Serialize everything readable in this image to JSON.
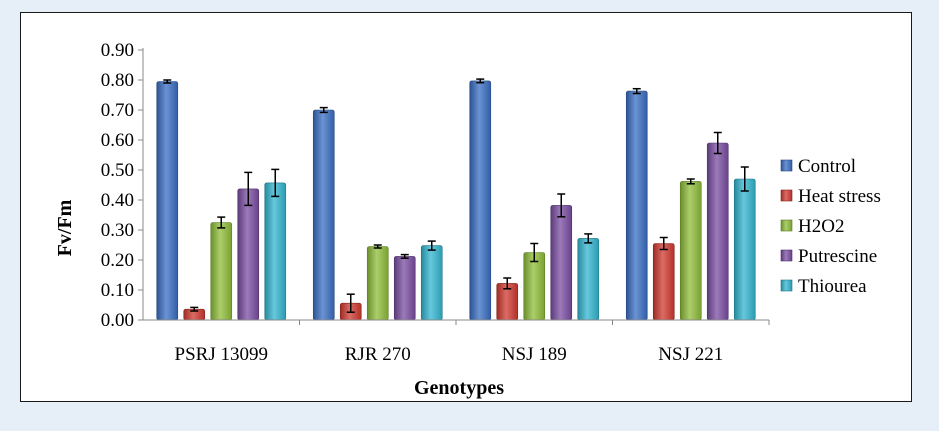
{
  "chart_data": {
    "type": "bar",
    "title": "",
    "xlabel": "Genotypes",
    "ylabel": "Fv/Fm",
    "ylim": [
      0,
      0.9
    ],
    "yticks": [
      "0.00",
      "0.10",
      "0.20",
      "0.30",
      "0.40",
      "0.50",
      "0.60",
      "0.70",
      "0.80",
      "0.90"
    ],
    "ytick_values": [
      0,
      0.1,
      0.2,
      0.3,
      0.4,
      0.5,
      0.6,
      0.7,
      0.8,
      0.9
    ],
    "categories": [
      "PSRJ 13099",
      "RJR 270",
      "NSJ 189",
      "NSJ 221"
    ],
    "grid": false,
    "legend_position": "right",
    "series": [
      {
        "name": "Control",
        "color": "#3a6fc4",
        "values": [
          0.795,
          0.7,
          0.797,
          0.763
        ],
        "errors": [
          0.005,
          0.008,
          0.006,
          0.008
        ]
      },
      {
        "name": "Heat stress",
        "color": "#d03a30",
        "values": [
          0.036,
          0.056,
          0.122,
          0.255
        ],
        "errors": [
          0.006,
          0.03,
          0.018,
          0.02
        ]
      },
      {
        "name": "H2O2",
        "color": "#8fbe3a",
        "values": [
          0.325,
          0.245,
          0.225,
          0.462
        ],
        "errors": [
          0.018,
          0.005,
          0.03,
          0.008
        ]
      },
      {
        "name": "Putrescine",
        "color": "#7b4ea3",
        "values": [
          0.437,
          0.212,
          0.382,
          0.59
        ],
        "errors": [
          0.055,
          0.006,
          0.038,
          0.035
        ]
      },
      {
        "name": "Thiourea",
        "color": "#33b6d0",
        "values": [
          0.457,
          0.248,
          0.272,
          0.47
        ],
        "errors": [
          0.045,
          0.015,
          0.015,
          0.04
        ]
      }
    ]
  }
}
